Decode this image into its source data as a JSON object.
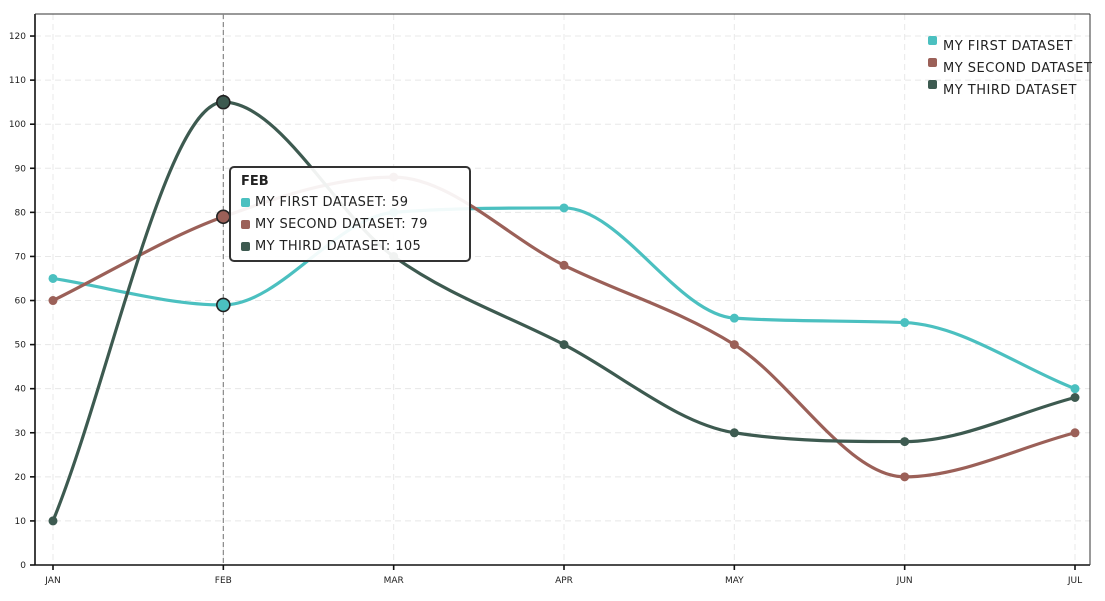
{
  "chart_data": {
    "type": "line",
    "categories": [
      "JAN",
      "FEB",
      "MAR",
      "APR",
      "MAY",
      "JUN",
      "JUL"
    ],
    "series": [
      {
        "name": "MY FIRST DATASET",
        "values": [
          65,
          59,
          80,
          81,
          56,
          55,
          40
        ],
        "color": "#4bc0c0"
      },
      {
        "name": "MY SECOND DATASET",
        "values": [
          60,
          79,
          88,
          68,
          50,
          20,
          30
        ],
        "color": "#9b6058"
      },
      {
        "name": "MY THIRD DATASET",
        "values": [
          10,
          105,
          70,
          50,
          30,
          28,
          38
        ],
        "color": "#3d5a50"
      }
    ],
    "ylim": [
      0,
      125
    ],
    "yticks": [
      0,
      10,
      20,
      30,
      40,
      50,
      60,
      70,
      80,
      90,
      100,
      110,
      120
    ],
    "grid": true,
    "legend_position": "top-right",
    "hover_index": 1
  },
  "tooltip": {
    "title": "FEB",
    "rows": [
      {
        "text": "MY FIRST DATASET: 59",
        "color": "#4bc0c0"
      },
      {
        "text": "MY SECOND DATASET: 79",
        "color": "#9b6058"
      },
      {
        "text": "MY THIRD DATASET: 105",
        "color": "#3d5a50"
      }
    ]
  }
}
